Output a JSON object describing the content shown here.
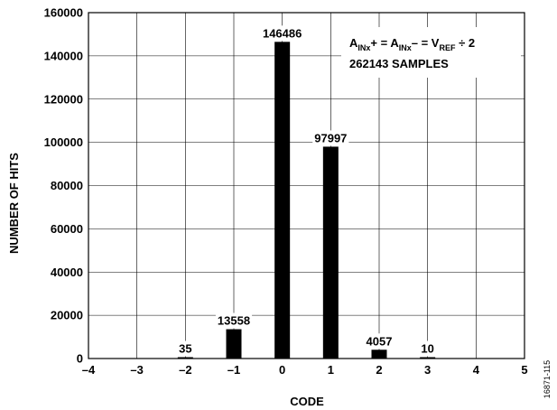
{
  "chart_data": {
    "type": "bar",
    "xlabel": "CODE",
    "ylabel": "NUMBER OF HITS",
    "xlim": [
      -4,
      5
    ],
    "ylim": [
      0,
      160000
    ],
    "x_ticks": [
      -4,
      -3,
      -2,
      -1,
      0,
      1,
      2,
      3,
      4,
      5
    ],
    "x_tick_labels": [
      "–4",
      "–3",
      "–2",
      "–1",
      "0",
      "1",
      "2",
      "3",
      "4",
      "5"
    ],
    "y_ticks": [
      0,
      20000,
      40000,
      60000,
      80000,
      100000,
      120000,
      140000,
      160000
    ],
    "y_tick_labels": [
      "0",
      "20000",
      "40000",
      "60000",
      "80000",
      "100000",
      "120000",
      "140000",
      "160000"
    ],
    "grid": true,
    "bars": [
      {
        "code": -2,
        "value": 35,
        "label": "35"
      },
      {
        "code": -1,
        "value": 13558,
        "label": "13558"
      },
      {
        "code": 0,
        "value": 146486,
        "label": "146486"
      },
      {
        "code": 1,
        "value": 97997,
        "label": "97997"
      },
      {
        "code": 2,
        "value": 4057,
        "label": "4057"
      },
      {
        "code": 3,
        "value": 10,
        "label": "10"
      }
    ],
    "annotation": {
      "line1": {
        "a1": "A",
        "s1": "INx",
        "plus": "+ = ",
        "a2": "A",
        "s2": "INx",
        "minus": "– = ",
        "v": "V",
        "s3": "REF",
        "div": " ÷ 2"
      },
      "line2": "262143 SAMPLES"
    },
    "figure_id": "16871-115"
  }
}
